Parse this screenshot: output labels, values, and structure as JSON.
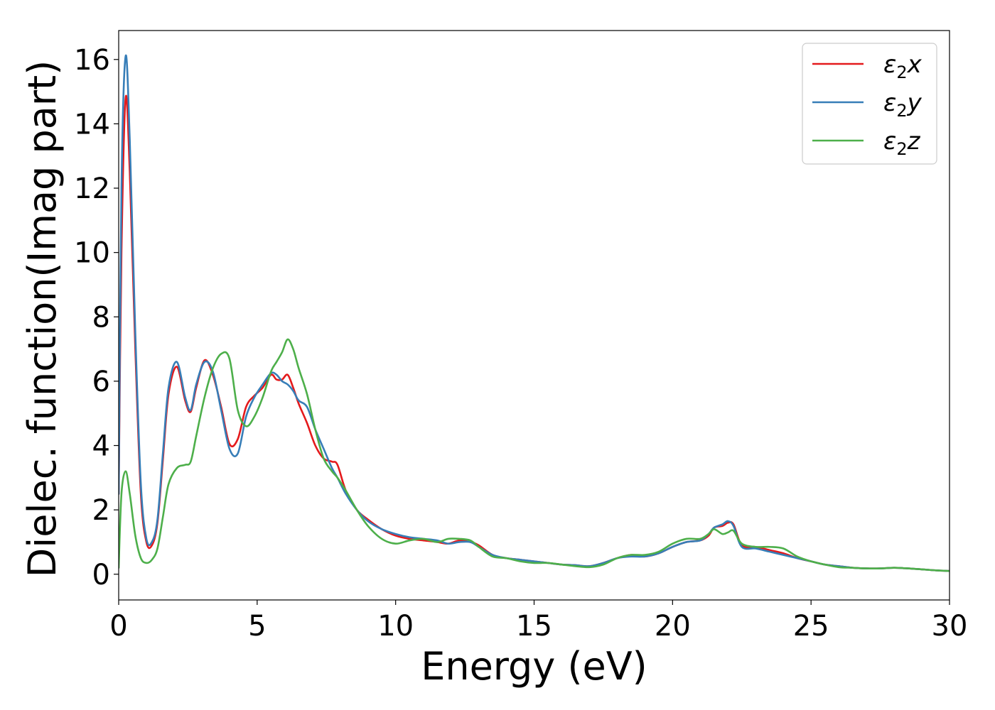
{
  "chart_data": {
    "type": "line",
    "title": "",
    "xlabel": "Energy (eV)",
    "ylabel": "Dielec. function(Imag part)",
    "xlim": [
      0,
      30
    ],
    "ylim": [
      -0.8,
      16.9
    ],
    "xticks": [
      0,
      5,
      10,
      15,
      20,
      25,
      30
    ],
    "yticks": [
      0,
      2,
      4,
      6,
      8,
      10,
      12,
      14,
      16
    ],
    "grid": false,
    "legend_position": "top-right",
    "series": [
      {
        "name": "ε₂x",
        "legend_base": "ε",
        "legend_sub": "2",
        "legend_suffix": "x",
        "color": "#e41a1c",
        "x": [
          0,
          0.1,
          0.25,
          0.4,
          0.6,
          0.8,
          1.0,
          1.2,
          1.4,
          1.6,
          1.8,
          2.1,
          2.4,
          2.6,
          2.8,
          3.1,
          3.4,
          3.7,
          4.0,
          4.3,
          4.6,
          4.9,
          5.2,
          5.5,
          5.7,
          5.9,
          6.1,
          6.3,
          6.5,
          6.8,
          7.1,
          7.4,
          7.7,
          7.9,
          8.2,
          8.6,
          9.0,
          9.5,
          10.0,
          10.5,
          11.0,
          11.5,
          11.9,
          12.3,
          12.7,
          13.0,
          13.5,
          14.0,
          14.5,
          15.0,
          15.5,
          16.0,
          16.5,
          17.0,
          17.5,
          18.0,
          18.5,
          19.0,
          19.5,
          20.0,
          20.5,
          21.0,
          21.3,
          21.5,
          21.8,
          22.0,
          22.2,
          22.5,
          23.0,
          23.5,
          24.0,
          24.5,
          25.0,
          25.5,
          26.0,
          26.5,
          27.0,
          27.5,
          28.0,
          28.5,
          29.0,
          29.5,
          30.0
        ],
        "y": [
          2.5,
          10.0,
          14.8,
          12.5,
          7.0,
          2.5,
          1.0,
          0.9,
          1.6,
          3.6,
          5.6,
          6.45,
          5.4,
          5.05,
          5.8,
          6.65,
          6.2,
          5.2,
          4.05,
          4.2,
          5.2,
          5.55,
          5.8,
          6.2,
          6.05,
          6.05,
          6.2,
          5.8,
          5.3,
          4.7,
          4.0,
          3.6,
          3.5,
          3.4,
          2.6,
          2.0,
          1.7,
          1.4,
          1.2,
          1.1,
          1.05,
          1.0,
          0.95,
          1.05,
          1.0,
          0.9,
          0.6,
          0.5,
          0.45,
          0.4,
          0.35,
          0.3,
          0.28,
          0.25,
          0.35,
          0.5,
          0.6,
          0.55,
          0.65,
          0.85,
          1.0,
          1.05,
          1.2,
          1.45,
          1.5,
          1.6,
          1.55,
          0.9,
          0.85,
          0.75,
          0.65,
          0.5,
          0.4,
          0.3,
          0.25,
          0.2,
          0.18,
          0.18,
          0.2,
          0.18,
          0.15,
          0.12,
          0.1
        ]
      },
      {
        "name": "ε₂y",
        "legend_base": "ε",
        "legend_sub": "2",
        "legend_suffix": "y",
        "color": "#377eb8",
        "x": [
          0,
          0.1,
          0.25,
          0.4,
          0.6,
          0.8,
          1.0,
          1.2,
          1.4,
          1.6,
          1.8,
          2.1,
          2.4,
          2.6,
          2.8,
          3.1,
          3.4,
          3.7,
          4.0,
          4.3,
          4.6,
          4.9,
          5.2,
          5.5,
          5.7,
          5.9,
          6.1,
          6.3,
          6.5,
          6.8,
          7.1,
          7.4,
          7.7,
          7.9,
          8.2,
          8.6,
          9.0,
          9.5,
          10.0,
          10.5,
          11.0,
          11.5,
          11.9,
          12.3,
          12.7,
          13.0,
          13.5,
          14.0,
          14.5,
          15.0,
          15.5,
          16.0,
          16.5,
          17.0,
          17.5,
          18.0,
          18.5,
          19.0,
          19.5,
          20.0,
          20.5,
          21.0,
          21.3,
          21.5,
          21.8,
          22.0,
          22.2,
          22.5,
          23.0,
          23.5,
          24.0,
          24.5,
          25.0,
          25.5,
          26.0,
          26.5,
          27.0,
          27.5,
          28.0,
          28.5,
          29.0,
          29.5,
          30.0
        ],
        "y": [
          2.5,
          12.0,
          16.1,
          13.5,
          7.5,
          2.8,
          1.1,
          1.0,
          1.7,
          3.8,
          5.8,
          6.6,
          5.5,
          5.1,
          5.9,
          6.6,
          6.3,
          5.1,
          3.9,
          3.75,
          4.9,
          5.5,
          5.9,
          6.25,
          6.2,
          6.0,
          5.9,
          5.7,
          5.4,
          5.2,
          4.5,
          3.9,
          3.3,
          3.0,
          2.5,
          2.0,
          1.65,
          1.4,
          1.25,
          1.15,
          1.1,
          1.05,
          0.95,
          1.0,
          1.0,
          0.85,
          0.6,
          0.5,
          0.45,
          0.4,
          0.35,
          0.3,
          0.28,
          0.25,
          0.35,
          0.5,
          0.55,
          0.55,
          0.65,
          0.85,
          1.0,
          1.05,
          1.25,
          1.45,
          1.55,
          1.65,
          1.5,
          0.85,
          0.8,
          0.7,
          0.6,
          0.5,
          0.4,
          0.3,
          0.25,
          0.2,
          0.18,
          0.18,
          0.2,
          0.18,
          0.15,
          0.12,
          0.1
        ]
      },
      {
        "name": "ε₂z",
        "legend_base": "ε",
        "legend_sub": "2",
        "legend_suffix": "z",
        "color": "#4daf4a",
        "x": [
          0,
          0.1,
          0.25,
          0.4,
          0.6,
          0.8,
          1.0,
          1.2,
          1.4,
          1.6,
          1.8,
          2.1,
          2.4,
          2.6,
          2.8,
          3.1,
          3.4,
          3.7,
          4.0,
          4.3,
          4.6,
          4.9,
          5.2,
          5.5,
          5.7,
          5.9,
          6.1,
          6.3,
          6.5,
          6.8,
          7.1,
          7.4,
          7.7,
          7.9,
          8.2,
          8.6,
          9.0,
          9.5,
          10.0,
          10.5,
          11.0,
          11.5,
          11.9,
          12.3,
          12.7,
          13.0,
          13.5,
          14.0,
          14.5,
          15.0,
          15.5,
          16.0,
          16.5,
          17.0,
          17.5,
          18.0,
          18.5,
          19.0,
          19.5,
          20.0,
          20.5,
          21.0,
          21.3,
          21.5,
          21.8,
          22.0,
          22.2,
          22.5,
          23.0,
          23.5,
          24.0,
          24.5,
          25.0,
          25.5,
          26.0,
          26.5,
          27.0,
          27.5,
          28.0,
          28.5,
          29.0,
          29.5,
          30.0
        ],
        "y": [
          0.2,
          2.5,
          3.2,
          2.5,
          1.2,
          0.5,
          0.35,
          0.45,
          0.8,
          1.8,
          2.8,
          3.3,
          3.4,
          3.5,
          4.3,
          5.5,
          6.4,
          6.85,
          6.7,
          5.1,
          4.6,
          4.9,
          5.5,
          6.3,
          6.6,
          6.9,
          7.3,
          7.0,
          6.4,
          5.6,
          4.5,
          3.6,
          3.2,
          3.0,
          2.6,
          2.0,
          1.5,
          1.1,
          0.95,
          1.05,
          1.1,
          1.0,
          1.1,
          1.1,
          1.05,
          0.85,
          0.55,
          0.5,
          0.4,
          0.35,
          0.35,
          0.3,
          0.25,
          0.22,
          0.3,
          0.5,
          0.6,
          0.6,
          0.7,
          0.95,
          1.1,
          1.1,
          1.25,
          1.4,
          1.25,
          1.3,
          1.35,
          0.95,
          0.85,
          0.85,
          0.8,
          0.55,
          0.4,
          0.3,
          0.22,
          0.2,
          0.18,
          0.18,
          0.2,
          0.18,
          0.15,
          0.12,
          0.1
        ]
      }
    ]
  }
}
